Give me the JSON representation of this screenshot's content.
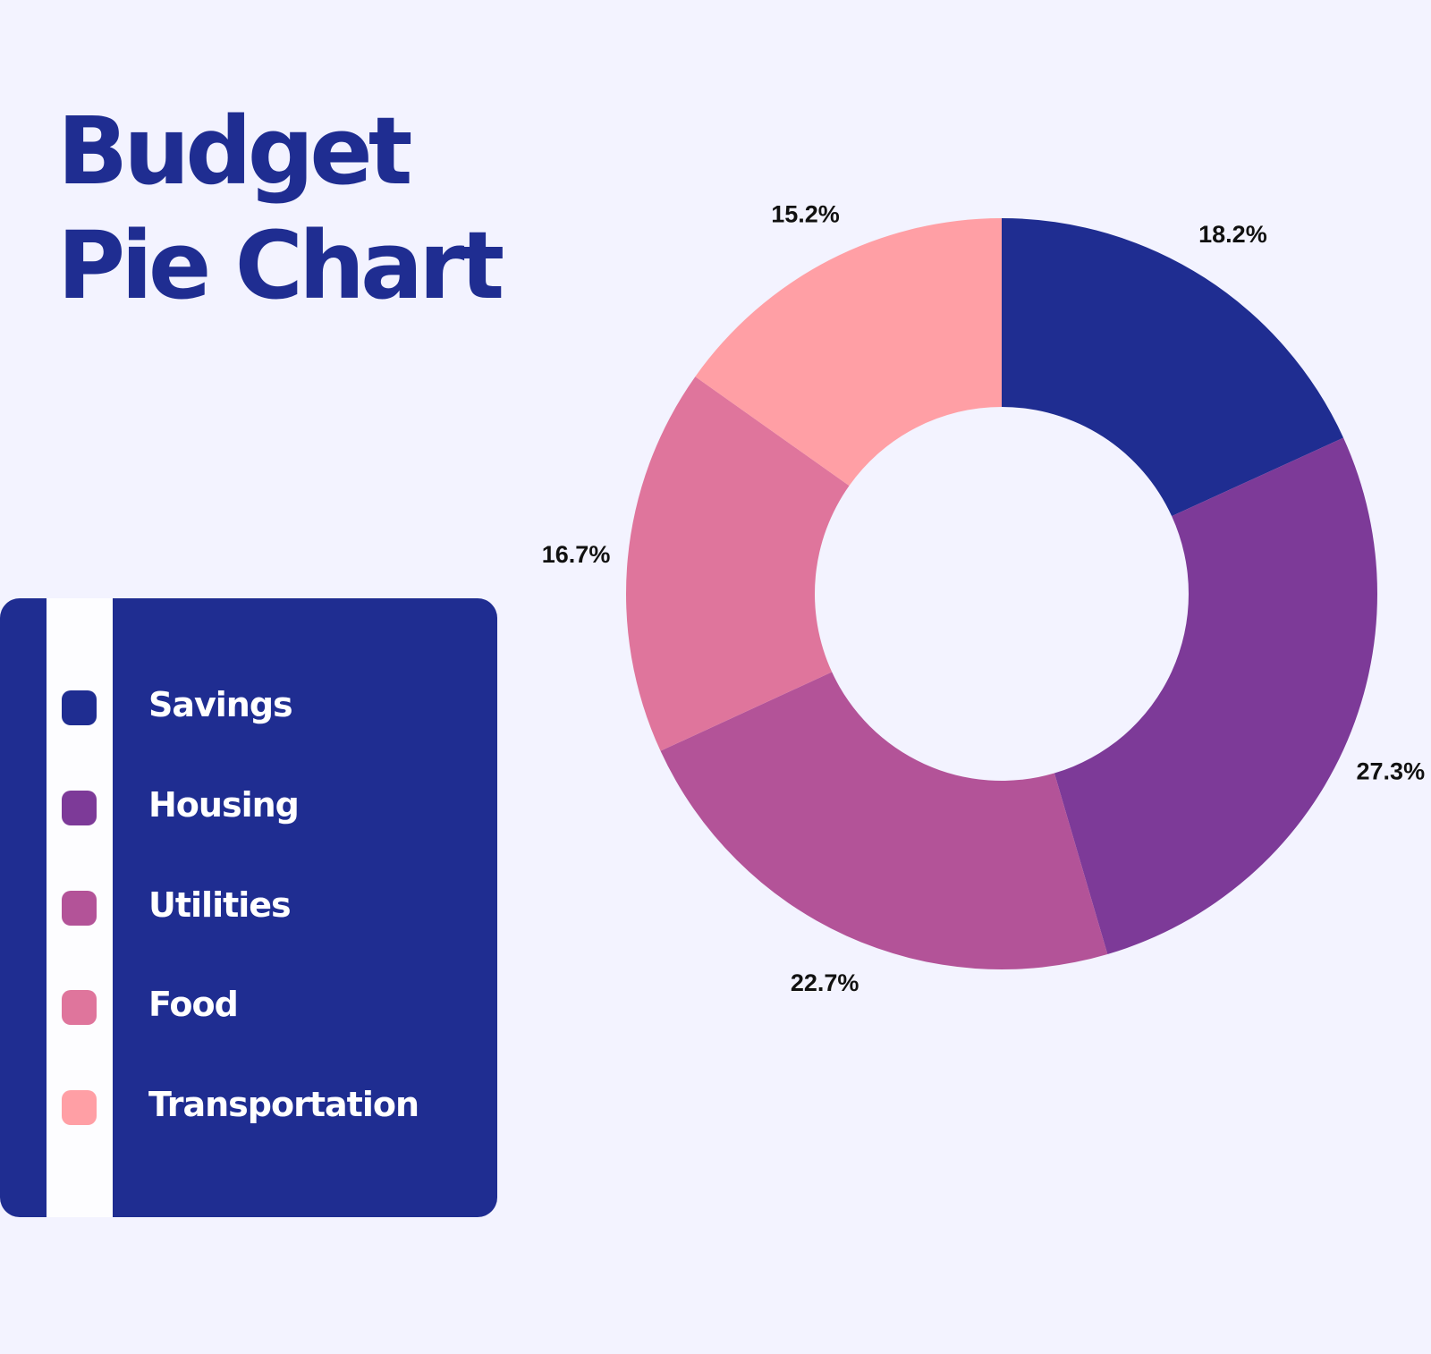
{
  "chart_data": {
    "type": "pie",
    "donut": true,
    "title": [
      "Budget",
      "Pie Chart"
    ],
    "categories": [
      "Savings",
      "Housing",
      "Utilities",
      "Food",
      "Transportation"
    ],
    "values": [
      18.2,
      27.3,
      22.7,
      16.7,
      15.2
    ],
    "labels": [
      "18.2%",
      "27.3%",
      "22.7%",
      "16.7%",
      "15.2%"
    ],
    "colors": [
      "#1f2d91",
      "#7d3a98",
      "#b35398",
      "#df759c",
      "#ff9fa5"
    ],
    "legend_position": "left"
  }
}
